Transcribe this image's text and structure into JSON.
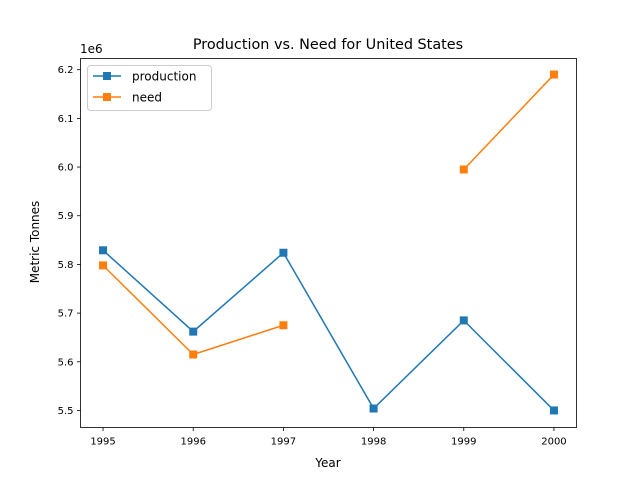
{
  "chart_data": {
    "type": "line",
    "title": "Production vs. Need for United States",
    "xlabel": "Year",
    "ylabel": "Metric Tonnes",
    "y_offset_label": "1e6",
    "x": [
      1995,
      1996,
      1997,
      1998,
      1999,
      2000
    ],
    "xlim": [
      1994.75,
      2000.25
    ],
    "ylim": [
      5.465,
      6.223
    ],
    "x_ticks": [
      "1995",
      "1996",
      "1997",
      "1998",
      "1999",
      "2000"
    ],
    "y_ticks": [
      5.5,
      5.6,
      5.7,
      5.8,
      5.9,
      6.0,
      6.1,
      6.2
    ],
    "y_tick_labels": [
      "5.5",
      "5.6",
      "5.7",
      "5.8",
      "5.9",
      "6.0",
      "6.1",
      "6.2"
    ],
    "grid": false,
    "legend_position": "top-left",
    "series": [
      {
        "name": "production",
        "color": "#1f77b4",
        "marker": "square",
        "values": [
          5.829,
          5.662,
          5.824,
          5.504,
          5.685,
          5.5
        ]
      },
      {
        "name": "need",
        "color": "#ff7f0e",
        "marker": "square",
        "values": [
          5.798,
          5.615,
          5.675,
          null,
          5.995,
          6.19
        ]
      }
    ]
  }
}
